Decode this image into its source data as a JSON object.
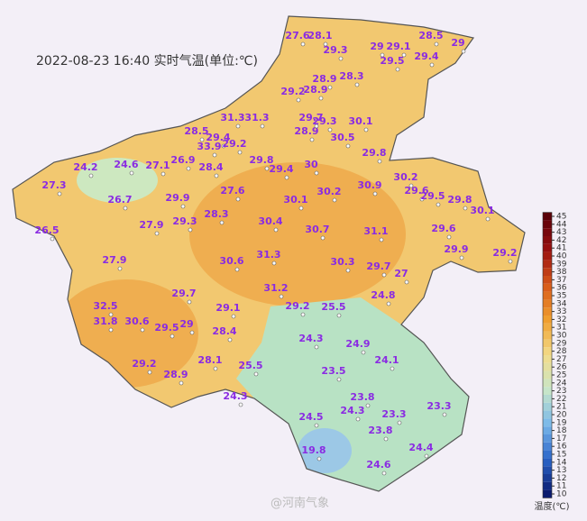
{
  "title": "2022-08-23 16:40 实时气温(单位:℃)",
  "watermark": "@河南气象",
  "label_color": "#8a2be2",
  "stations": [
    27.6,
    28.1,
    29.3,
    28.5,
    29,
    29.1,
    29,
    29.4,
    29.5,
    28.3,
    28.9,
    29.2,
    28.9,
    28.9,
    29.7,
    31.3,
    29.3,
    30.1,
    30.5,
    31.3,
    28.5,
    29.4,
    29.2,
    24.2,
    24.6,
    27.1,
    26.9,
    33.9,
    28.4,
    29.8,
    29.4,
    30,
    29.8,
    30.2,
    29.6,
    29.5,
    29.8,
    30.1,
    27.3,
    26.7,
    29.9,
    27.6,
    30.1,
    30.2,
    30.9,
    26.5,
    27.9,
    29.3,
    28.3,
    30.4,
    30.7,
    31.1,
    29.6,
    29.9,
    29.2,
    27.9,
    30.6,
    31.3,
    30.3,
    29.7,
    27,
    31.2,
    29.2,
    25.5,
    24.8,
    32.5,
    31.8,
    30.6,
    29.5,
    29,
    29.7,
    29.1,
    28.4,
    29.2,
    28.9,
    28.1,
    25.5,
    24.3,
    24.3,
    24.9,
    24.1,
    23.5,
    23.8,
    24.3,
    23.3,
    23.8,
    23.3,
    24.5,
    19.8,
    24.6,
    24.4
  ],
  "colorbar": {
    "label": "温度(℃)",
    "ticks": [
      10,
      11,
      12,
      13,
      14,
      15,
      16,
      17,
      18,
      19,
      20,
      21,
      22,
      23,
      24,
      25,
      26,
      27,
      28,
      29,
      30,
      31,
      32,
      33,
      34,
      35,
      36,
      37,
      38,
      39,
      40,
      41,
      42,
      43,
      44,
      45
    ],
    "colors": [
      "#0a1a6e",
      "#2a64c8",
      "#7ab8ea",
      "#c8e6c8",
      "#f2dc8a",
      "#f0a030",
      "#d85a1a",
      "#9a1010",
      "#5a0008"
    ]
  }
}
